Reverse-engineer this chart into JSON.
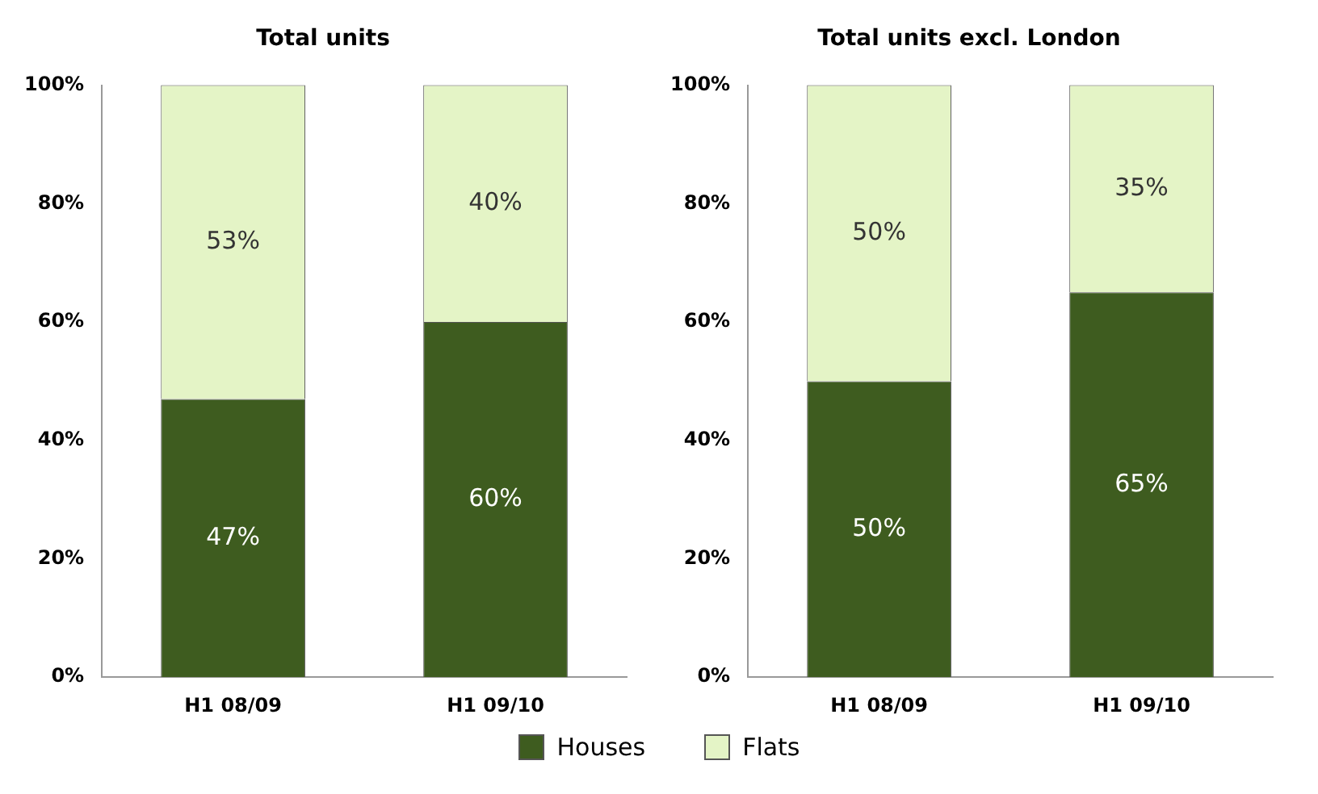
{
  "chart_data": [
    {
      "type": "bar",
      "title": "Total units",
      "categories": [
        "H1 08/09",
        "H1 09/10"
      ],
      "stacked": true,
      "ylim": [
        0,
        100
      ],
      "yticks": [
        {
          "value": 0,
          "label": "0%"
        },
        {
          "value": 20,
          "label": "20%"
        },
        {
          "value": 40,
          "label": "40%"
        },
        {
          "value": 60,
          "label": "60%"
        },
        {
          "value": 80,
          "label": "80%"
        },
        {
          "value": 100,
          "label": "100%"
        }
      ],
      "grid": false,
      "legend": false,
      "series": [
        {
          "color": "#3e5c1f",
          "values": [
            47,
            60
          ],
          "value_labels": [
            "47%",
            "60%"
          ]
        },
        {
          "color": "#e4f4c6",
          "values": [
            53,
            40
          ],
          "value_labels": [
            "53%",
            "40%"
          ]
        }
      ]
    },
    {
      "type": "bar",
      "title": "Total units excl. London",
      "categories": [
        "H1 08/09",
        "H1 09/10"
      ],
      "stacked": true,
      "ylim": [
        0,
        100
      ],
      "yticks": [
        {
          "value": 0,
          "label": "0%"
        },
        {
          "value": 20,
          "label": "20%"
        },
        {
          "value": 40,
          "label": "40%"
        },
        {
          "value": 60,
          "label": "60%"
        },
        {
          "value": 80,
          "label": "80%"
        },
        {
          "value": 100,
          "label": "100%"
        }
      ],
      "grid": false,
      "legend": "bottom",
      "series": [
        {
          "name": "Houses",
          "color": "#3e5c1f",
          "values": [
            50,
            65
          ],
          "value_labels": [
            "50%",
            "65%"
          ]
        },
        {
          "name": "Flats",
          "color": "#e4f4c6",
          "values": [
            50,
            35
          ],
          "value_labels": [
            "50%",
            "35%"
          ]
        }
      ]
    }
  ]
}
